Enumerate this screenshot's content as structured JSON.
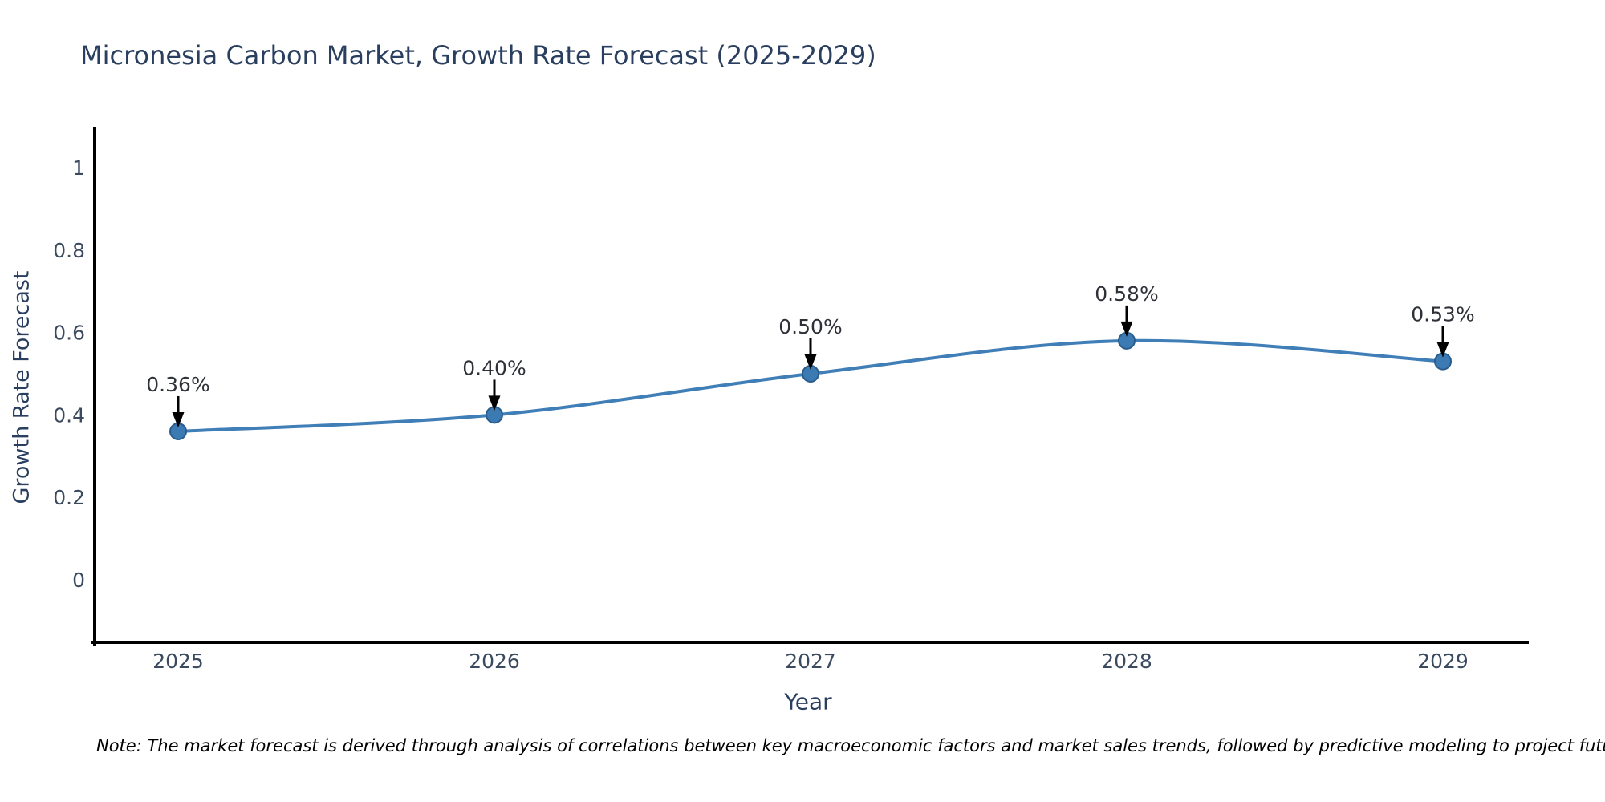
{
  "page": {
    "background": "#ffffff"
  },
  "chart_data": {
    "type": "line",
    "title": "Micronesia Carbon Market, Growth Rate Forecast (2025-2029)",
    "xlabel": "Year",
    "ylabel": "Growth Rate Forecast",
    "categories": [
      2025,
      2026,
      2027,
      2028,
      2029
    ],
    "xtick_labels": [
      "2025",
      "2026",
      "2027",
      "2028",
      "2029"
    ],
    "series": [
      {
        "name": "Growth Rate Forecast",
        "values": [
          0.36,
          0.4,
          0.5,
          0.58,
          0.53
        ]
      }
    ],
    "point_labels": [
      "0.36%",
      "0.40%",
      "0.50%",
      "0.58%",
      "0.53%"
    ],
    "yticks": [
      0,
      0.2,
      0.4,
      0.6,
      0.8,
      1
    ],
    "ytick_labels": [
      "0",
      "0.2",
      "0.4",
      "0.6",
      "0.8",
      "1"
    ],
    "ylim": [
      -0.15,
      1.1
    ],
    "grid": false,
    "legend": "none",
    "line_style": "spline",
    "marker": "circle",
    "annotation_arrows": "down",
    "colors": {
      "line": "#3f7eb6",
      "marker_fill": "#3c7ab3",
      "marker_edge": "#2a5d8c",
      "axis": "#000000",
      "tick_text": "#3b4a5f",
      "title_text": "#2a3f5f",
      "annotation_text": "#2e3138",
      "arrow": "#000000"
    },
    "note": "Note: The market forecast is derived through analysis of correlations between key macroeconomic factors and market sales trends, followed by predictive modeling to project future sales"
  }
}
